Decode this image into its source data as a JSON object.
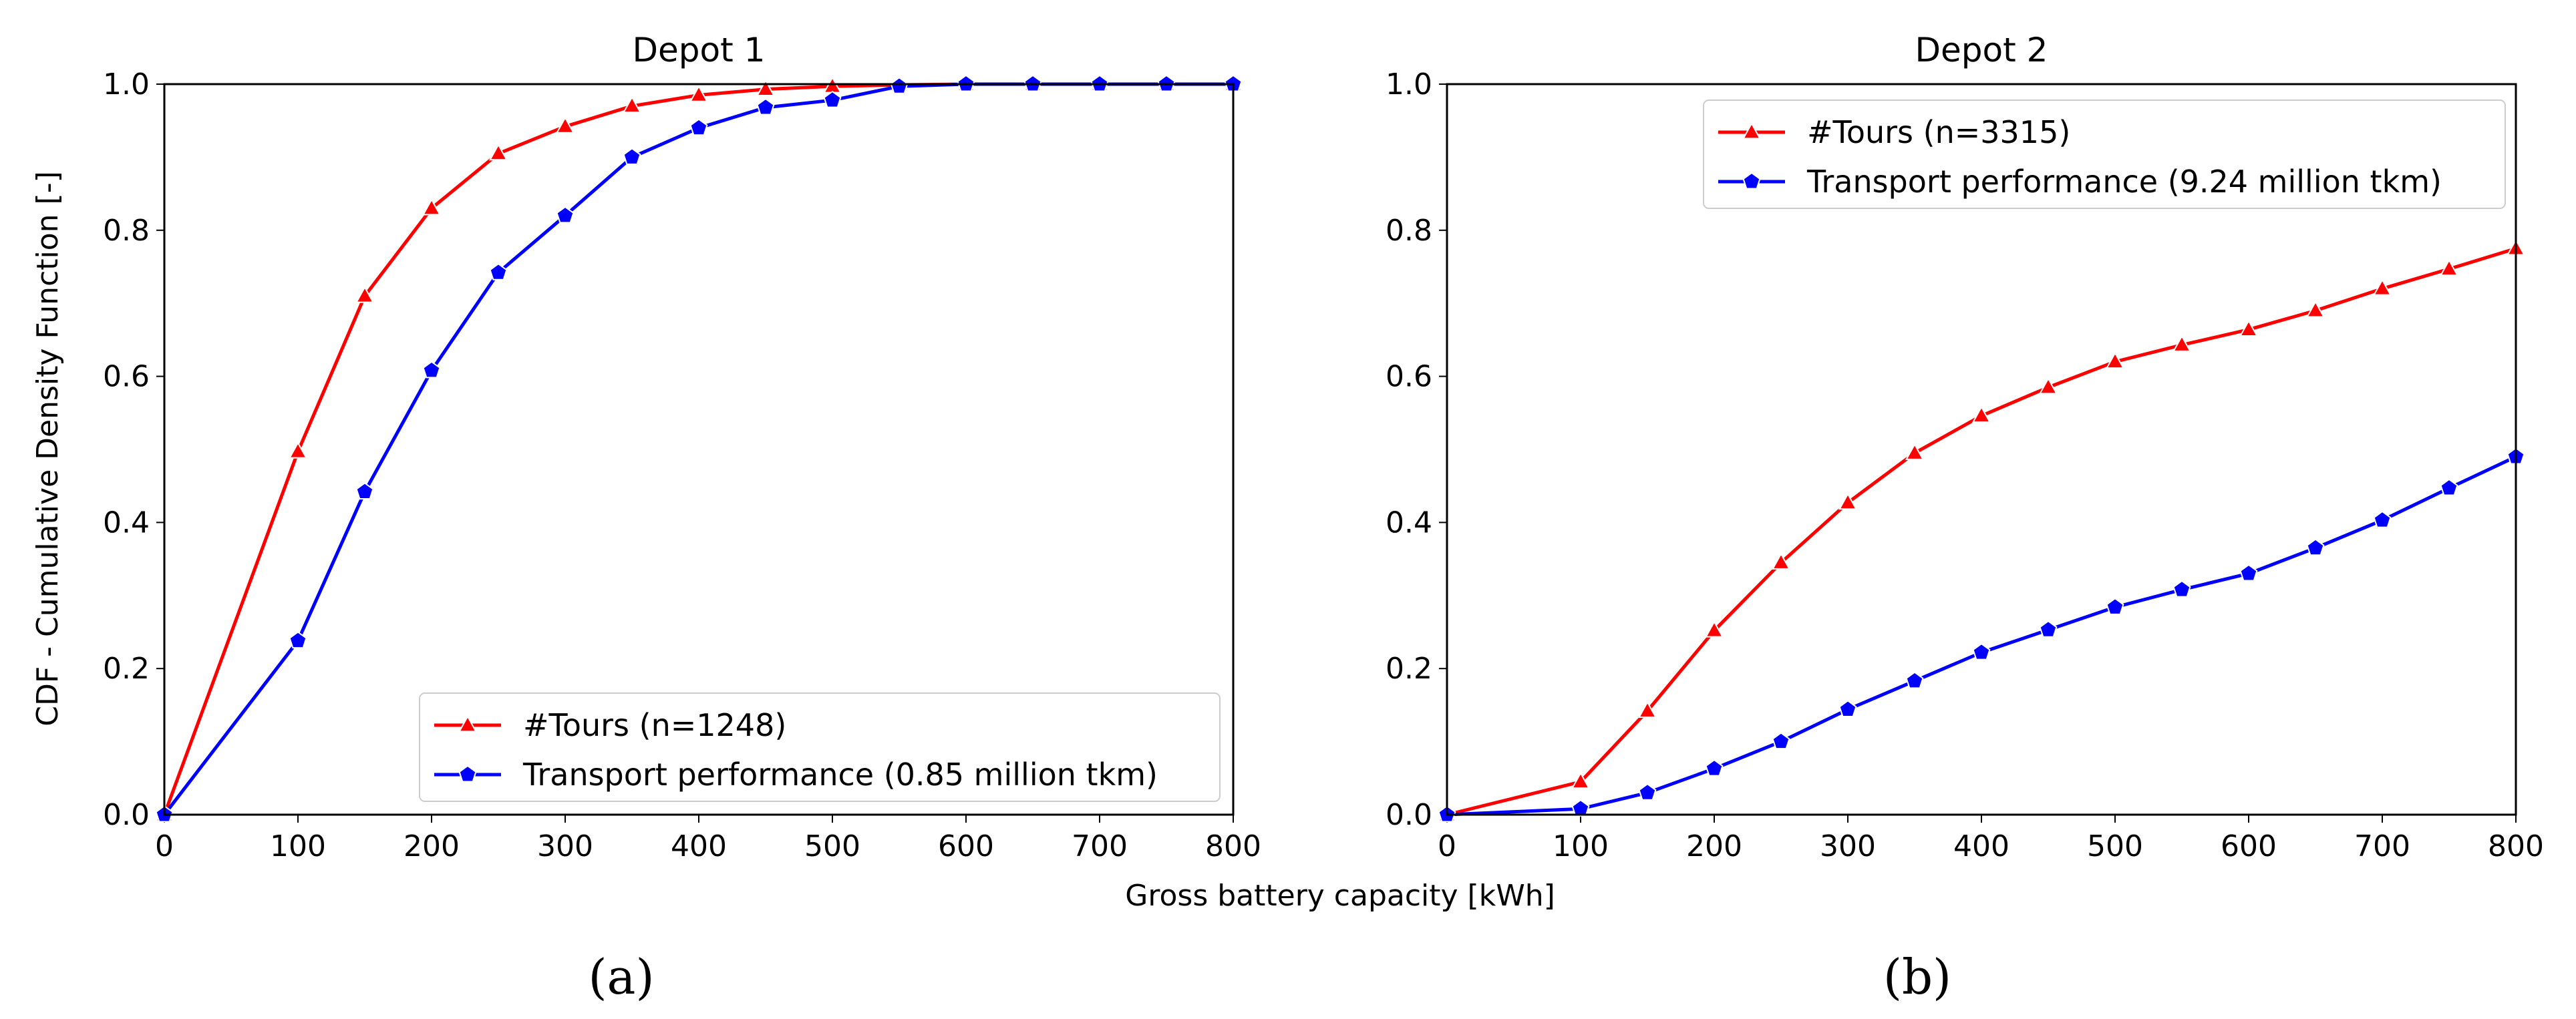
{
  "figure": {
    "shared_xlabel": "Gross battery capacity [kWh]",
    "shared_ylabel": "CDF - Cumulative Density Function [-]"
  },
  "chart_data": [
    {
      "type": "line",
      "panel_label": "(a)",
      "title": "Depot 1",
      "xlabel": "Gross battery capacity [kWh]",
      "ylabel": "CDF - Cumulative Density Function [-]",
      "xlim": [
        0,
        800
      ],
      "ylim": [
        0,
        1.0
      ],
      "xticks": [
        "0",
        "100",
        "200",
        "300",
        "400",
        "500",
        "600",
        "700",
        "800"
      ],
      "yticks": [
        "0.0",
        "0.2",
        "0.4",
        "0.6",
        "0.8",
        "1.0"
      ],
      "grid": false,
      "legend_position": "lower right",
      "x": [
        0,
        100,
        150,
        200,
        250,
        300,
        350,
        400,
        450,
        500,
        550,
        600,
        650,
        700,
        750,
        800
      ],
      "series": [
        {
          "name": "#Tours (n=1248)",
          "color": "#ff0000",
          "marker": "triangle",
          "values": [
            0.0,
            0.497,
            0.71,
            0.83,
            0.905,
            0.942,
            0.97,
            0.985,
            0.993,
            0.997,
            0.999,
            1.0,
            1.0,
            1.0,
            1.0,
            1.0
          ]
        },
        {
          "name": "Transport performance (0.85 million tkm)",
          "color": "#0000ff",
          "marker": "pentagon",
          "values": [
            0.0,
            0.238,
            0.442,
            0.608,
            0.742,
            0.82,
            0.9,
            0.94,
            0.968,
            0.978,
            0.997,
            1.0,
            1.0,
            1.0,
            1.0,
            1.0
          ]
        }
      ]
    },
    {
      "type": "line",
      "panel_label": "(b)",
      "title": "Depot 2",
      "xlabel": "Gross battery capacity [kWh]",
      "ylabel": "",
      "xlim": [
        0,
        800
      ],
      "ylim": [
        0,
        1.0
      ],
      "xticks": [
        "0",
        "100",
        "200",
        "300",
        "400",
        "500",
        "600",
        "700",
        "800"
      ],
      "yticks": [
        "0.0",
        "0.2",
        "0.4",
        "0.6",
        "0.8",
        "1.0"
      ],
      "grid": false,
      "legend_position": "upper center",
      "x": [
        0,
        100,
        150,
        200,
        250,
        300,
        350,
        400,
        450,
        500,
        550,
        600,
        650,
        700,
        750,
        800
      ],
      "series": [
        {
          "name": "#Tours (n=3315)",
          "color": "#ff0000",
          "marker": "triangle",
          "values": [
            0.0,
            0.045,
            0.142,
            0.252,
            0.345,
            0.427,
            0.495,
            0.546,
            0.585,
            0.62,
            0.643,
            0.664,
            0.69,
            0.72,
            0.747,
            0.775
          ]
        },
        {
          "name": "Transport performance (9.24 million tkm)",
          "color": "#0000ff",
          "marker": "pentagon",
          "values": [
            0.0,
            0.008,
            0.03,
            0.063,
            0.1,
            0.144,
            0.183,
            0.222,
            0.253,
            0.284,
            0.308,
            0.33,
            0.365,
            0.403,
            0.447,
            0.49
          ]
        }
      ]
    }
  ]
}
